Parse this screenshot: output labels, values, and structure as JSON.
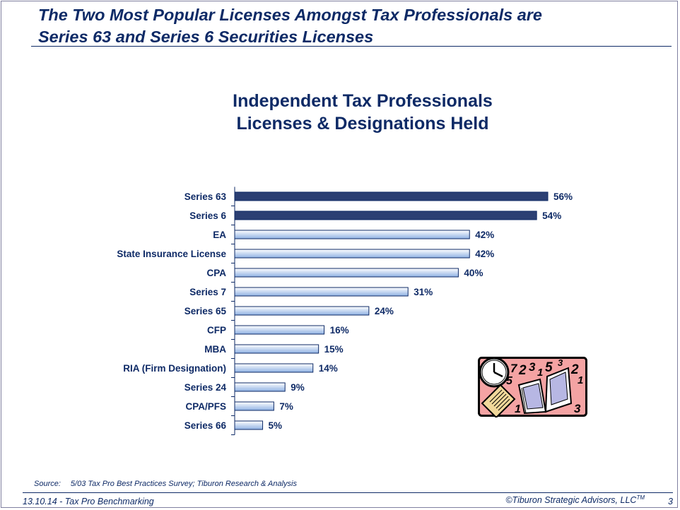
{
  "slide": {
    "headline_line1": "The Two Most Popular Licenses Amongst Tax Professionals are",
    "headline_line2": "Series 63 and Series 6 Securities Licenses",
    "source_label": "Source:",
    "source_text": "5/03 Tax Pro Best Practices Survey; Tiburon Research & Analysis",
    "footer_left": "13.10.14 - Tax Pro Benchmarking",
    "footer_right": "©Tiburon Strategic Advisors, LLC",
    "footer_trademark": "TM",
    "page_number": "3",
    "colors": {
      "text": "#0e2a66",
      "highlight_bar": "#2b3f73",
      "regular_bar_top": "#ffffff",
      "regular_bar_bottom": "#8fb1e3"
    },
    "clipart_icon": "clock-papers-book-clipart"
  },
  "chart_data": {
    "type": "bar",
    "orientation": "horizontal",
    "title_line1": "Independent Tax Professionals",
    "title_line2": "Licenses & Designations Held",
    "categories": [
      "Series 63",
      "Series 6",
      "EA",
      "State Insurance License",
      "CPA",
      "Series 7",
      "Series 65",
      "CFP",
      "MBA",
      "RIA (Firm Designation)",
      "Series 24",
      "CPA/PFS",
      "Series 66"
    ],
    "values": [
      56,
      54,
      42,
      42,
      40,
      31,
      24,
      16,
      15,
      14,
      9,
      7,
      5
    ],
    "value_labels": [
      "56%",
      "54%",
      "42%",
      "42%",
      "40%",
      "31%",
      "24%",
      "16%",
      "15%",
      "14%",
      "9%",
      "7%",
      "5%"
    ],
    "highlighted": [
      true,
      true,
      false,
      false,
      false,
      false,
      false,
      false,
      false,
      false,
      false,
      false,
      false
    ],
    "unit": "%",
    "xlim": [
      0,
      56
    ],
    "grid": false,
    "legend": "none"
  }
}
